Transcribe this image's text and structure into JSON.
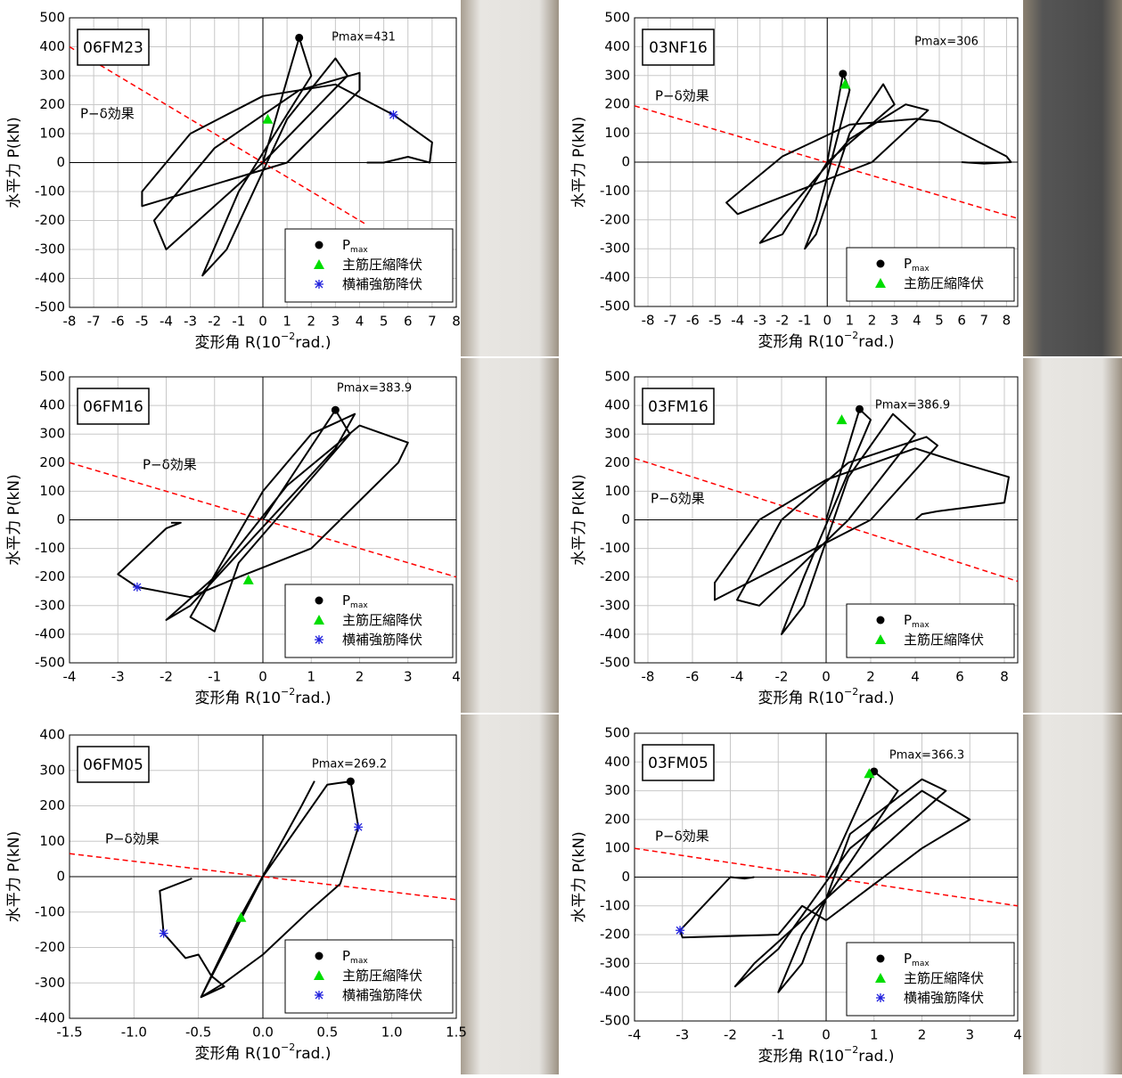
{
  "chart_data": [
    {
      "type": "line",
      "specimen": "06FM23",
      "pmax_label": "Pmax=431",
      "annotation": "P−δ効果",
      "x_label": [
        "変形角 R(10",
        "−2",
        "rad.)"
      ],
      "y_label": "水平力 P(kN)",
      "xlim": [
        -8,
        8
      ],
      "xticks": [
        -8,
        -7,
        -6,
        -5,
        -4,
        -3,
        -2,
        -1,
        0,
        1,
        2,
        3,
        4,
        5,
        6,
        7,
        8
      ],
      "ylim": [
        -500,
        500
      ],
      "yticks": [
        -500,
        -400,
        -300,
        -200,
        -100,
        0,
        100,
        200,
        300,
        400,
        500
      ],
      "grid": true,
      "curve": {
        "color": "#000000",
        "x": [
          0,
          1.5,
          2,
          -1,
          -2.5,
          -1.5,
          1,
          3,
          3.5,
          0,
          -4,
          -4.5,
          -2,
          1.5,
          4,
          4,
          1,
          -5,
          -5,
          -3,
          0,
          3,
          5.4,
          7,
          6.9,
          6,
          5,
          4.3
        ],
        "y": [
          0,
          431,
          300,
          -100,
          -390,
          -300,
          150,
          360,
          300,
          0,
          -300,
          -200,
          50,
          250,
          310,
          250,
          0,
          -150,
          -100,
          100,
          230,
          270,
          165,
          70,
          0,
          20,
          0,
          0
        ]
      },
      "reference_line": {
        "color": "#ff0000",
        "x": [
          -8,
          4.2
        ],
        "y": [
          400,
          -210
        ]
      },
      "markers": [
        {
          "name": "P",
          "name_sub": "max",
          "marker": "circle",
          "color": "#000000",
          "x": [
            1.5
          ],
          "y": [
            431
          ]
        },
        {
          "name": "主筋圧縮降伏",
          "marker": "triangle",
          "color": "#00dd00",
          "x": [
            0.2
          ],
          "y": [
            150
          ]
        },
        {
          "name": "横補強筋降伏",
          "marker": "star",
          "color": "#2222dd",
          "x": [
            5.4
          ],
          "y": [
            165
          ]
        }
      ]
    },
    {
      "type": "line",
      "specimen": "03NF16",
      "pmax_label": "Pmax=306",
      "annotation": "P−δ効果",
      "x_label": [
        "変形角 R(10",
        "−2",
        "rad.)"
      ],
      "y_label": "水平力 P(kN)",
      "xlim": [
        -8.6,
        8.5
      ],
      "xticks": [
        -8,
        -7,
        -6,
        -5,
        -4,
        -3,
        -2,
        -1,
        0,
        1,
        2,
        3,
        4,
        5,
        6,
        7,
        8
      ],
      "ylim": [
        -500,
        500
      ],
      "yticks": [
        -500,
        -400,
        -300,
        -200,
        -100,
        0,
        100,
        200,
        300,
        400,
        500
      ],
      "grid": true,
      "curve": {
        "color": "#000000",
        "x": [
          0,
          0.7,
          1,
          -0.5,
          -1,
          -0.5,
          1,
          2.5,
          3,
          0,
          -2,
          -3,
          -1,
          1,
          3.5,
          4.5,
          2,
          -4,
          -4.5,
          -2,
          1,
          4,
          5,
          8,
          8.2,
          7,
          6
        ],
        "y": [
          0,
          306,
          250,
          -200,
          -300,
          -250,
          100,
          270,
          200,
          0,
          -250,
          -280,
          -100,
          80,
          200,
          180,
          0,
          -180,
          -140,
          20,
          130,
          150,
          140,
          20,
          0,
          -5,
          0
        ]
      },
      "reference_line": {
        "color": "#ff0000",
        "x": [
          -8.6,
          8.5
        ],
        "y": [
          195,
          -195
        ]
      },
      "markers": [
        {
          "name": "P",
          "name_sub": "max",
          "marker": "circle",
          "color": "#000000",
          "x": [
            0.7
          ],
          "y": [
            306
          ]
        },
        {
          "name": "主筋圧縮降伏",
          "marker": "triangle",
          "color": "#00dd00",
          "x": [
            0.8
          ],
          "y": [
            270
          ]
        }
      ]
    },
    {
      "type": "line",
      "specimen": "06FM16",
      "pmax_label": "Pmax=383.9",
      "annotation": "P−δ効果",
      "x_label": [
        "変形角 R(10",
        "−2",
        "rad.)"
      ],
      "y_label": "水平力 P(kN)",
      "xlim": [
        -4,
        4
      ],
      "xticks": [
        -4,
        -3,
        -2,
        -1,
        0,
        1,
        2,
        3,
        4
      ],
      "ylim": [
        -500,
        500
      ],
      "yticks": [
        -500,
        -400,
        -300,
        -200,
        -100,
        0,
        100,
        200,
        300,
        400,
        500
      ],
      "grid": true,
      "curve": {
        "color": "#000000",
        "x": [
          0,
          1.5,
          1.8,
          -0.5,
          -1,
          -1.5,
          0,
          1,
          1.9,
          1.5,
          -1.5,
          -2,
          -1,
          0.5,
          2,
          3,
          2.8,
          1,
          -0.5,
          -1.5,
          -2.6,
          -3,
          -2,
          -1.7,
          -1.9
        ],
        "y": [
          0,
          384,
          300,
          -150,
          -390,
          -340,
          100,
          300,
          370,
          250,
          -300,
          -350,
          -200,
          120,
          330,
          270,
          200,
          -100,
          -200,
          -270,
          -235,
          -190,
          -30,
          -10,
          -10
        ]
      },
      "reference_line": {
        "color": "#ff0000",
        "x": [
          -4,
          4
        ],
        "y": [
          200,
          -200
        ]
      },
      "markers": [
        {
          "name": "P",
          "name_sub": "max",
          "marker": "circle",
          "color": "#000000",
          "x": [
            1.5
          ],
          "y": [
            384
          ]
        },
        {
          "name": "主筋圧縮降伏",
          "marker": "triangle",
          "color": "#00dd00",
          "x": [
            -0.3
          ],
          "y": [
            -210
          ]
        },
        {
          "name": "横補強筋降伏",
          "marker": "star",
          "color": "#2222dd",
          "x": [
            -2.6
          ],
          "y": [
            -235
          ]
        }
      ]
    },
    {
      "type": "line",
      "specimen": "03FM16",
      "pmax_label": "Pmax=386.9",
      "annotation": "P−δ効果",
      "x_label": [
        "変形角 R(10",
        "−2",
        "rad.)"
      ],
      "y_label": "水平力 P(kN)",
      "xlim": [
        -8.6,
        8.6
      ],
      "xticks": [
        -8,
        -6,
        -4,
        -2,
        0,
        2,
        4,
        6,
        8
      ],
      "ylim": [
        -500,
        500
      ],
      "yticks": [
        -500,
        -400,
        -300,
        -200,
        -100,
        0,
        100,
        200,
        300,
        400,
        500
      ],
      "grid": true,
      "curve": {
        "color": "#000000",
        "x": [
          0,
          1.5,
          2,
          -1,
          -2,
          -1,
          1,
          3,
          4,
          1,
          -3,
          -4,
          -2,
          1,
          4.5,
          5,
          2,
          -5,
          -5,
          -3,
          0,
          4,
          6,
          8.2,
          8,
          5,
          4.3,
          4
        ],
        "y": [
          0,
          387,
          350,
          -200,
          -400,
          -300,
          150,
          370,
          300,
          0,
          -300,
          -280,
          0,
          200,
          290,
          260,
          0,
          -280,
          -220,
          0,
          140,
          250,
          200,
          150,
          60,
          30,
          20,
          0
        ]
      },
      "reference_line": {
        "color": "#ff0000",
        "x": [
          -8.6,
          8.6
        ],
        "y": [
          215,
          -215
        ]
      },
      "markers": [
        {
          "name": "P",
          "name_sub": "max",
          "marker": "circle",
          "color": "#000000",
          "x": [
            1.5
          ],
          "y": [
            387
          ]
        },
        {
          "name": "主筋圧縮降伏",
          "marker": "triangle",
          "color": "#00dd00",
          "x": [
            0.7
          ],
          "y": [
            350
          ]
        }
      ]
    },
    {
      "type": "line",
      "specimen": "06FM05",
      "pmax_label": "Pmax=269.2",
      "annotation": "P−δ効果",
      "x_label": [
        "変形角 R(10",
        "−2",
        "rad.)"
      ],
      "y_label": "水平力 P(kN)",
      "xlim": [
        -1.5,
        1.5
      ],
      "xticks": [
        {
          "value": -1.5,
          "label": "-1.5"
        },
        {
          "value": -1,
          "label": "-1.0"
        },
        {
          "value": -0.5,
          "label": "-0.5"
        },
        {
          "value": 0,
          "label": "0.0"
        },
        {
          "value": 0.5,
          "label": "0.5"
        },
        {
          "value": 1,
          "label": "1.0"
        },
        {
          "value": 1.5,
          "label": "1.5"
        }
      ],
      "ylim": [
        -400,
        400
      ],
      "yticks": [
        -400,
        -300,
        -200,
        -100,
        0,
        100,
        200,
        300,
        400
      ],
      "grid": true,
      "curve": {
        "color": "#000000",
        "x": [
          -0.55,
          -0.8,
          -0.77,
          -0.6,
          -0.5,
          -0.4,
          -0.3,
          -0.48,
          0,
          0.5,
          0.68,
          0.74,
          0.6,
          0.35,
          0,
          -0.3,
          -0.48,
          -0.2,
          0.3,
          0.4
        ],
        "y": [
          -5,
          -40,
          -160,
          -230,
          -220,
          -280,
          -310,
          -340,
          0,
          260,
          269,
          140,
          -20,
          -100,
          -220,
          -300,
          -340,
          -130,
          200,
          270
        ]
      },
      "reference_line": {
        "color": "#ff0000",
        "x": [
          -1.5,
          1.5
        ],
        "y": [
          65,
          -65
        ]
      },
      "markers": [
        {
          "name": "P",
          "name_sub": "max",
          "marker": "circle",
          "color": "#000000",
          "x": [
            0.68
          ],
          "y": [
            269
          ]
        },
        {
          "name": "主筋圧縮降伏",
          "marker": "triangle",
          "color": "#00dd00",
          "x": [
            -0.17
          ],
          "y": [
            -115
          ]
        },
        {
          "name": "横補強筋降伏",
          "marker": "star",
          "color": "#2222dd",
          "x": [
            0.74,
            -0.77
          ],
          "y": [
            140,
            -160
          ]
        }
      ]
    },
    {
      "type": "line",
      "specimen": "03FM05",
      "pmax_label": "Pmax=366.3",
      "annotation": "P−δ効果",
      "x_label": [
        "変形角 R(10",
        "−2",
        "rad.)"
      ],
      "y_label": "水平力 P(kN)",
      "xlim": [
        -4,
        4
      ],
      "xticks": [
        -4,
        -3,
        -2,
        -1,
        0,
        1,
        2,
        3,
        4
      ],
      "ylim": [
        -500,
        500
      ],
      "yticks": [
        -500,
        -400,
        -300,
        -200,
        -100,
        0,
        100,
        200,
        300,
        400,
        500
      ],
      "grid": true,
      "curve": {
        "color": "#000000",
        "x": [
          0,
          1,
          1.5,
          -0.5,
          -1,
          -0.5,
          0.5,
          2,
          2.5,
          0.5,
          -1.5,
          -1.9,
          -1,
          0.5,
          2,
          3,
          2,
          0,
          -0.5,
          -1,
          -3,
          -3.05,
          -2,
          -1.7,
          -1.5
        ],
        "y": [
          0,
          367,
          300,
          -200,
          -400,
          -300,
          150,
          340,
          300,
          0,
          -300,
          -380,
          -250,
          100,
          300,
          200,
          100,
          -150,
          -100,
          -200,
          -210,
          -185,
          0,
          -5,
          0
        ]
      },
      "reference_line": {
        "color": "#ff0000",
        "x": [
          -4,
          4
        ],
        "y": [
          100,
          -100
        ]
      },
      "markers": [
        {
          "name": "P",
          "name_sub": "max",
          "marker": "circle",
          "color": "#000000",
          "x": [
            1
          ],
          "y": [
            367
          ]
        },
        {
          "name": "主筋圧縮降伏",
          "marker": "triangle",
          "color": "#00dd00",
          "x": [
            0.9
          ],
          "y": [
            360
          ]
        },
        {
          "name": "横補強筋降伏",
          "marker": "star",
          "color": "#2222dd",
          "x": [
            -3.05
          ],
          "y": [
            -185
          ]
        }
      ]
    }
  ]
}
